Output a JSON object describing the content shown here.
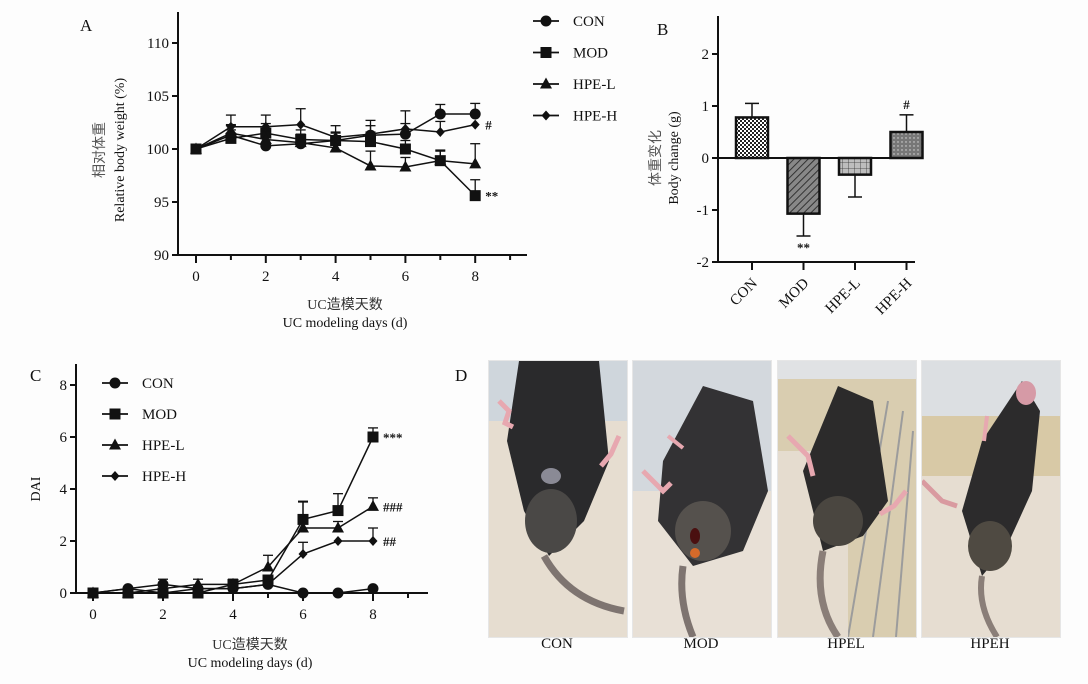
{
  "figure": {
    "panels": {
      "A": "A",
      "B": "B",
      "C": "C",
      "D": "D"
    }
  },
  "chart_data": [
    {
      "id": "A",
      "type": "line",
      "title": "",
      "xlabel_cn": "UC造模天数",
      "xlabel": "UC modeling days (d)",
      "ylabel_cn": "相对体重",
      "ylabel": "Relative body weight (%)",
      "xlim": [
        -0.5,
        9.5
      ],
      "ylim": [
        90,
        110
      ],
      "xticks": [
        0,
        2,
        4,
        6,
        8
      ],
      "yticks": [
        90,
        95,
        100,
        105,
        110
      ],
      "x": [
        0,
        1,
        2,
        3,
        4,
        5,
        6,
        7,
        8
      ],
      "legend_position": "top-right-outside",
      "series": [
        {
          "name": "CON",
          "marker": "circle",
          "values": [
            100,
            101.3,
            100.3,
            100.5,
            100.8,
            101.3,
            101.4,
            103.3,
            103.3
          ],
          "err": [
            0,
            0.9,
            0.9,
            0.7,
            0.8,
            0.9,
            1.0,
            0.9,
            1.0
          ]
        },
        {
          "name": "MOD",
          "marker": "square",
          "values": [
            100,
            101.0,
            101.5,
            100.9,
            100.8,
            100.7,
            100.0,
            98.9,
            95.6
          ],
          "err": [
            0,
            0.8,
            0.9,
            0.9,
            0.7,
            0.9,
            0.8,
            1.0,
            1.5
          ]
        },
        {
          "name": "HPE-L",
          "marker": "triangle",
          "values": [
            100,
            101.5,
            100.9,
            100.6,
            100.1,
            98.4,
            98.3,
            98.9,
            98.6
          ],
          "err": [
            0,
            0.8,
            0.8,
            0.8,
            0.8,
            1.4,
            0.9,
            0.9,
            1.9
          ]
        },
        {
          "name": "HPE-H",
          "marker": "diamond",
          "values": [
            100,
            102.1,
            102.1,
            102.3,
            101.1,
            101.4,
            101.9,
            101.6,
            102.3
          ],
          "err": [
            0,
            1.1,
            1.1,
            1.5,
            1.1,
            1.3,
            1.7,
            1.0,
            0.0
          ]
        }
      ],
      "annotations": [
        {
          "series": "HPE-H",
          "x": 8,
          "text": "#"
        },
        {
          "series": "MOD",
          "x": 8,
          "text": "**"
        }
      ]
    },
    {
      "id": "B",
      "type": "bar",
      "title": "",
      "ylabel_cn": "体重变化",
      "ylabel": "Body change (g)",
      "categories": [
        "CON",
        "MOD",
        "HPE-L",
        "HPE-H"
      ],
      "values": [
        0.78,
        -1.07,
        -0.32,
        0.5
      ],
      "err": [
        0.27,
        0.43,
        0.43,
        0.33
      ],
      "patterns": [
        "checker",
        "diagonal",
        "grid",
        "dots"
      ],
      "ylim": [
        -2,
        2.5
      ],
      "yticks": [
        -2,
        -1,
        0,
        1,
        2
      ],
      "annotations": [
        {
          "category": "MOD",
          "text": "**",
          "position": "below"
        },
        {
          "category": "HPE-H",
          "text": "#",
          "position": "above"
        }
      ]
    },
    {
      "id": "C",
      "type": "line",
      "title": "",
      "xlabel_cn": "UC造模天数",
      "xlabel": "UC modeling days (d)",
      "ylabel": "DAI",
      "xlim": [
        -0.5,
        9.5
      ],
      "ylim": [
        0,
        8.5
      ],
      "xticks": [
        0,
        2,
        4,
        6,
        8
      ],
      "yticks": [
        0,
        2,
        4,
        6,
        8
      ],
      "x": [
        0,
        1,
        2,
        3,
        4,
        5,
        6,
        7,
        8
      ],
      "legend_position": "top-left-inside",
      "series": [
        {
          "name": "CON",
          "marker": "circle",
          "values": [
            0,
            0.17,
            0.33,
            0.17,
            0.17,
            0.33,
            0,
            0,
            0.17
          ],
          "err": [
            0,
            0,
            0.2,
            0,
            0,
            0,
            0,
            0,
            0
          ]
        },
        {
          "name": "MOD",
          "marker": "square",
          "values": [
            0,
            0,
            0,
            0,
            0.33,
            0.5,
            2.83,
            3.17,
            6.0
          ],
          "err": [
            0,
            0,
            0,
            0,
            0,
            0,
            0.7,
            0.65,
            0.35
          ]
        },
        {
          "name": "HPE-L",
          "marker": "triangle",
          "values": [
            0,
            0,
            0.17,
            0.33,
            0.33,
            1.0,
            2.5,
            2.5,
            3.33
          ],
          "err": [
            0,
            0,
            0,
            0.2,
            0.2,
            0.45,
            1.0,
            0.25,
            0.33
          ]
        },
        {
          "name": "HPE-H",
          "marker": "diamond",
          "values": [
            0,
            0.17,
            0,
            0.17,
            0.17,
            0.33,
            1.5,
            2.0,
            2.0
          ],
          "err": [
            0,
            0,
            0,
            0,
            0,
            0,
            0.45,
            0,
            0.5
          ]
        }
      ],
      "annotations": [
        {
          "series": "MOD",
          "x": 8,
          "text": "***"
        },
        {
          "series": "HPE-L",
          "x": 8,
          "text": "###"
        },
        {
          "series": "HPE-H",
          "x": 8,
          "text": "##"
        }
      ]
    }
  ],
  "photos": [
    {
      "label": "CON"
    },
    {
      "label": "MOD"
    },
    {
      "label": "HPEL"
    },
    {
      "label": "HPEH"
    }
  ]
}
